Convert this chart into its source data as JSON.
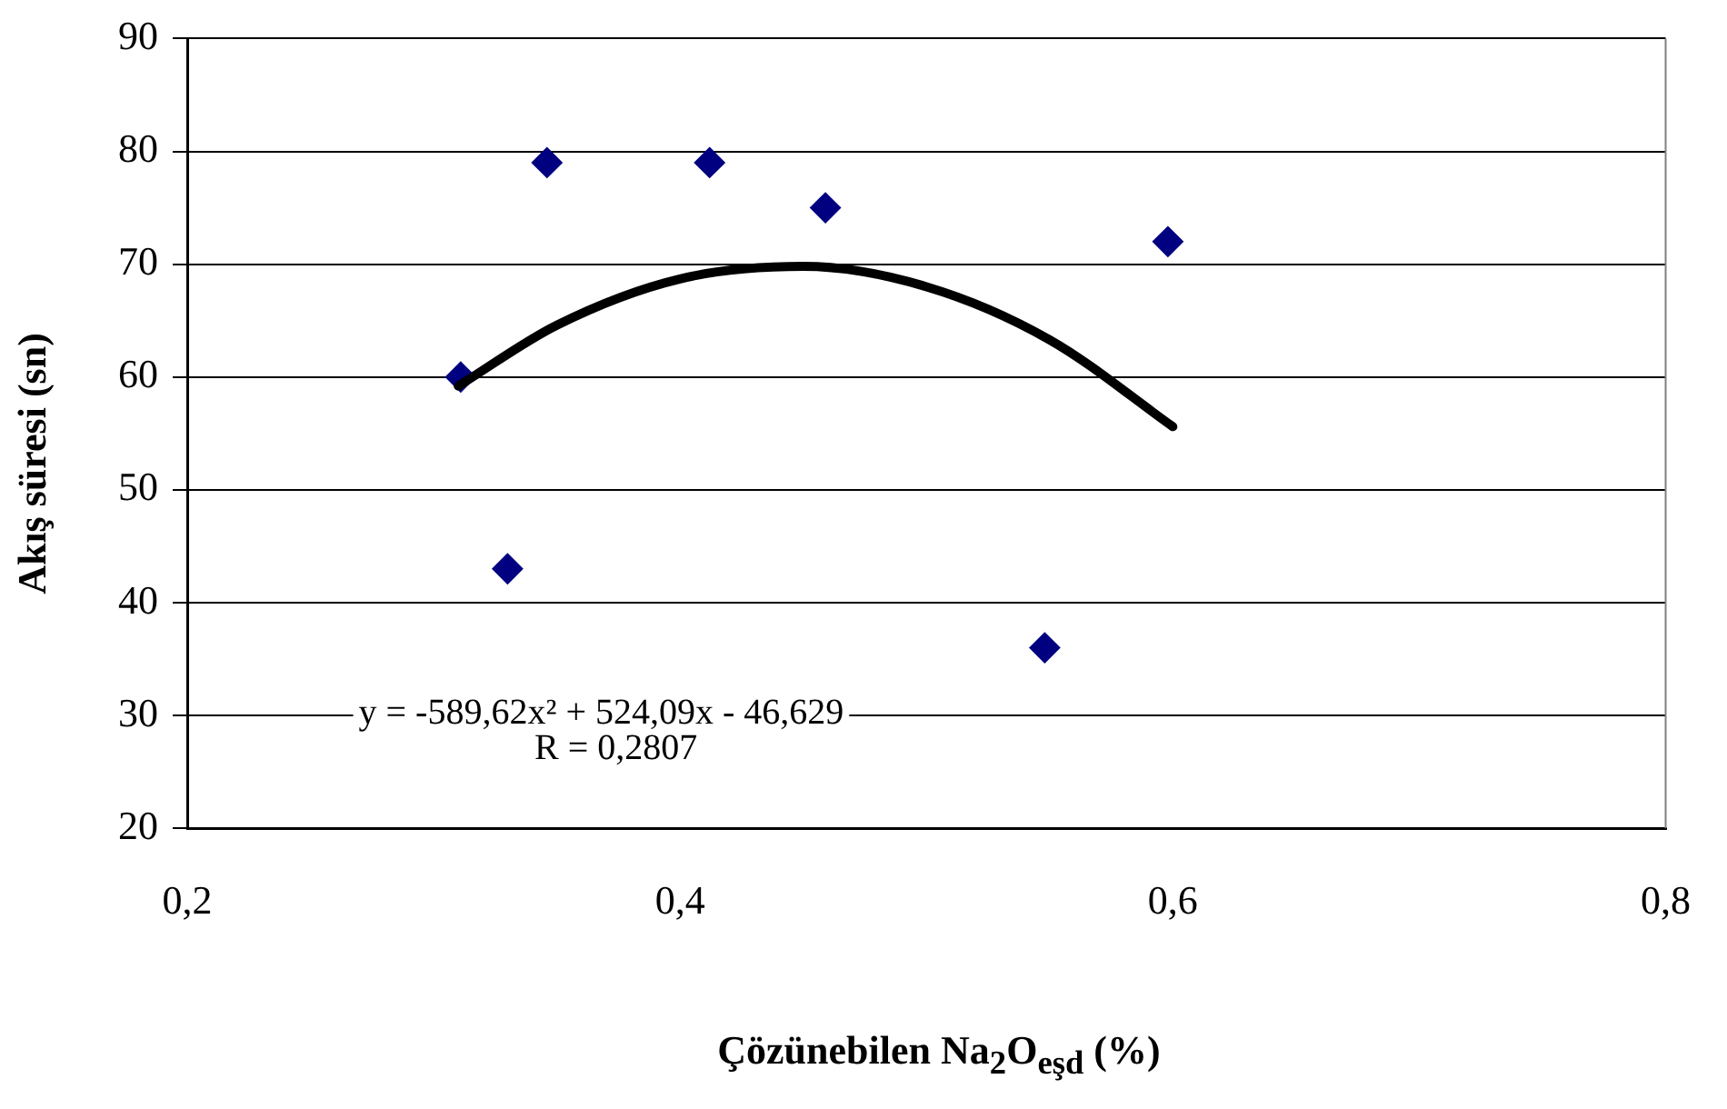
{
  "chart_data": {
    "type": "scatter",
    "xlabel": "Çözünebilen Na$_{2}$O$_{eşd}$ (%)",
    "ylabel": "Akış süresi (sn)",
    "series": [
      {
        "type": "scatter",
        "color": "#000080",
        "marker": "diamond",
        "x": [
          0.311,
          0.33,
          0.346,
          0.412,
          0.459,
          0.548,
          0.598
        ],
        "values": [
          60,
          43,
          79,
          79,
          75,
          36,
          72
        ]
      },
      {
        "type": "line",
        "color": "#000000",
        "marker": "none",
        "line_style": "solid",
        "x": [
          0.31,
          0.35,
          0.4,
          0.45,
          0.5,
          0.55,
          0.6
        ],
        "values": [
          59.2,
          64.6,
          68.7,
          69.8,
          68.0,
          63.3,
          55.6
        ]
      }
    ],
    "xlim": [
      0.2,
      0.8
    ],
    "xticks": [
      {
        "value": 0.2,
        "label": "0,2"
      },
      {
        "value": 0.4,
        "label": "0,4"
      },
      {
        "value": 0.6,
        "label": "0,6"
      },
      {
        "value": 0.8,
        "label": "0,8"
      }
    ],
    "ylim": [
      20,
      90
    ],
    "yticks": [
      20,
      30,
      40,
      50,
      60,
      70,
      80,
      90
    ],
    "grid": "y",
    "legend": false,
    "annotations": [
      "y = -589,62x² + 524,09x - 46,629",
      "R = 0,2807"
    ]
  }
}
